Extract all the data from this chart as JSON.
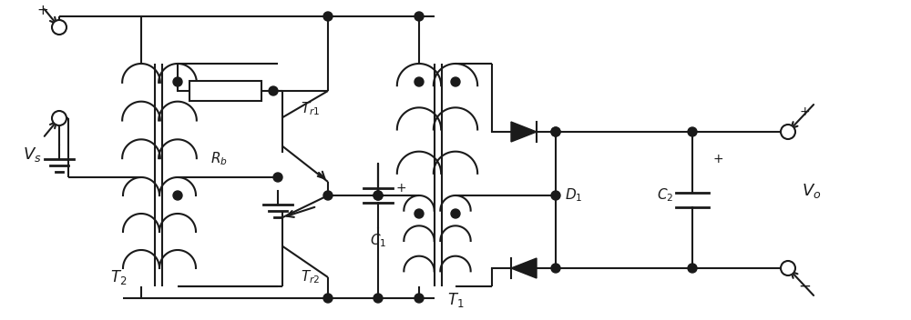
{
  "bg_color": "#ffffff",
  "line_color": "#1a1a1a",
  "line_width": 1.5,
  "figsize": [
    10.0,
    3.52
  ],
  "dpi": 100,
  "xlim": [
    0,
    1000
  ],
  "ylim": [
    0,
    352
  ]
}
